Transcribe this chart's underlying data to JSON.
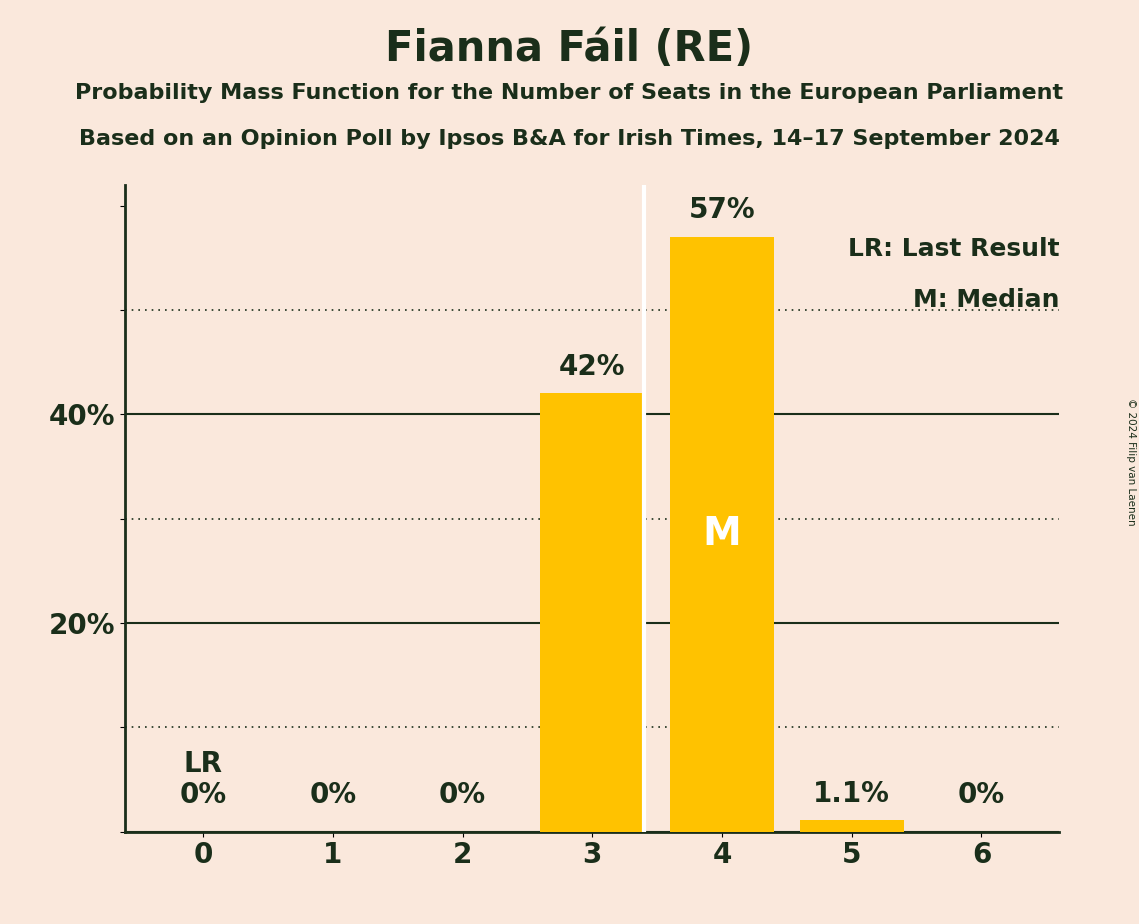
{
  "title": "Fianna Fáil (RE)",
  "subtitle_line1": "Probability Mass Function for the Number of Seats in the European Parliament",
  "subtitle_line2": "Based on an Opinion Poll by Ipsos B&A for Irish Times, 14–17 September 2024",
  "copyright": "© 2024 Filip van Laenen",
  "categories": [
    0,
    1,
    2,
    3,
    4,
    5,
    6
  ],
  "values": [
    0.0,
    0.0,
    0.0,
    42.0,
    57.0,
    1.1,
    0.0
  ],
  "bar_color": "#FFC200",
  "background_color": "#FAE8DC",
  "text_color": "#1A2E1A",
  "bar_labels": [
    "0%",
    "0%",
    "0%",
    "42%",
    "57%",
    "1.1%",
    "0%"
  ],
  "ylim": [
    0,
    62
  ],
  "solid_yticks": [
    0,
    20,
    40
  ],
  "dotted_yticks": [
    10,
    30,
    50
  ],
  "median_bar": 4,
  "median_label": "M",
  "lr_bar": 0,
  "lr_label": "LR",
  "legend_lr": "LR: Last Result",
  "legend_m": "M: Median",
  "title_fontsize": 30,
  "subtitle_fontsize": 16,
  "bar_label_fontsize": 20,
  "axis_tick_fontsize": 20,
  "legend_fontsize": 18,
  "median_fontsize": 28,
  "lr_fontsize": 20
}
